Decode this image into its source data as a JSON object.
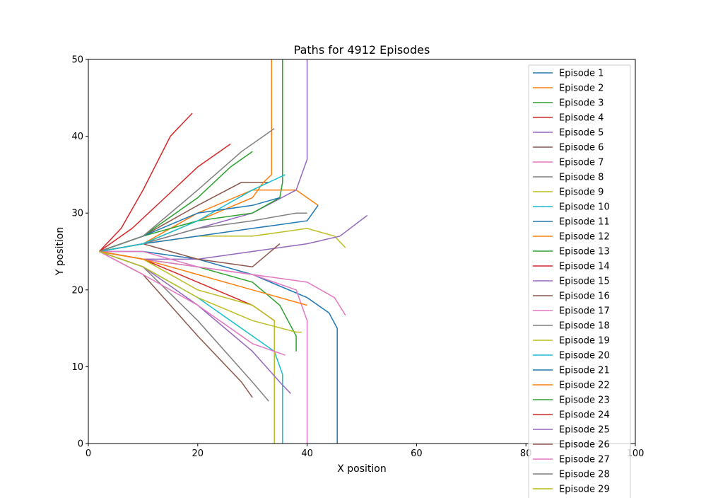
{
  "chart_data": {
    "type": "line",
    "title": "Paths for 4912 Episodes",
    "xlabel": "X position",
    "ylabel": "Y position",
    "xlim": [
      0,
      100
    ],
    "ylim": [
      0,
      50
    ],
    "xticks": [
      "0",
      "20",
      "40",
      "60",
      "80",
      "100"
    ],
    "yticks": [
      "0",
      "10",
      "20",
      "30",
      "40",
      "50"
    ],
    "grid": false,
    "legend_position": "right, extending below axes",
    "colors": [
      "#1f77b4",
      "#ff7f0e",
      "#2ca02c",
      "#d62728",
      "#9467bd",
      "#8c564b",
      "#e377c2",
      "#7f7f7f",
      "#bcbd22",
      "#17becf"
    ],
    "start_point": [
      2,
      25
    ],
    "legend": [
      "Episode 1",
      "Episode 2",
      "Episode 3",
      "Episode 4",
      "Episode 5",
      "Episode 6",
      "Episode 7",
      "Episode 8",
      "Episode 9",
      "Episode 10",
      "Episode 11",
      "Episode 12",
      "Episode 13",
      "Episode 14",
      "Episode 15",
      "Episode 16",
      "Episode 17",
      "Episode 18",
      "Episode 19",
      "Episode 20",
      "Episode 21",
      "Episode 22",
      "Episode 23",
      "Episode 24",
      "Episode 25",
      "Episode 26",
      "Episode 27",
      "Episode 28",
      "Episode 29"
    ],
    "series": [
      {
        "name": "Episode 1",
        "x": [
          2,
          10,
          20,
          30,
          40,
          44,
          45.5,
          45.5
        ],
        "y": [
          25,
          25,
          24,
          22,
          19,
          17,
          15,
          0
        ]
      },
      {
        "name": "Episode 2",
        "x": [
          2,
          10,
          20,
          30,
          38,
          42
        ],
        "y": [
          25,
          26,
          30,
          33,
          33,
          31
        ]
      },
      {
        "name": "Episode 3",
        "x": [
          2,
          10,
          20,
          30,
          35,
          38,
          38
        ],
        "y": [
          25,
          24,
          23,
          21,
          18,
          14,
          12
        ]
      },
      {
        "name": "Episode 4",
        "x": [
          2,
          6,
          10,
          15,
          19
        ],
        "y": [
          25,
          28,
          33,
          40,
          43
        ]
      },
      {
        "name": "Episode 5",
        "x": [
          2,
          10,
          20,
          30,
          38,
          40,
          40
        ],
        "y": [
          25,
          26,
          28,
          30,
          33,
          37,
          50
        ]
      },
      {
        "name": "Episode 6",
        "x": [
          2,
          10,
          20,
          28,
          32,
          33
        ],
        "y": [
          25,
          27,
          31,
          34,
          34,
          34
        ]
      },
      {
        "name": "Episode 7",
        "x": [
          2,
          10,
          20,
          30,
          38,
          40,
          40
        ],
        "y": [
          25,
          24,
          23,
          22,
          20,
          16,
          0
        ]
      },
      {
        "name": "Episode 8",
        "x": [
          2,
          10,
          20,
          30,
          33
        ],
        "y": [
          25,
          23,
          16,
          8,
          5.5
        ]
      },
      {
        "name": "Episode 9",
        "x": [
          2,
          10,
          20,
          30,
          40,
          45,
          47
        ],
        "y": [
          25,
          26,
          27,
          27,
          28,
          27,
          25.5
        ]
      },
      {
        "name": "Episode 10",
        "x": [
          2,
          10,
          20,
          30,
          34,
          35.5,
          35.5
        ],
        "y": [
          25,
          23,
          19,
          14,
          12,
          9,
          0
        ]
      },
      {
        "name": "Episode 11",
        "x": [
          2,
          10,
          20,
          30,
          40,
          42
        ],
        "y": [
          25,
          26,
          27,
          28,
          29,
          31
        ]
      },
      {
        "name": "Episode 12",
        "x": [
          2,
          10,
          20,
          30,
          32,
          33.5,
          33.5
        ],
        "y": [
          25,
          26,
          29,
          32,
          34,
          35,
          50
        ]
      },
      {
        "name": "Episode 13",
        "x": [
          2,
          10,
          20,
          30,
          35,
          35.5,
          35.5
        ],
        "y": [
          25,
          27,
          29,
          30,
          32,
          34,
          50
        ]
      },
      {
        "name": "Episode 14",
        "x": [
          2,
          10,
          20,
          30,
          34
        ],
        "y": [
          25,
          24,
          21,
          18,
          16
        ]
      },
      {
        "name": "Episode 15",
        "x": [
          2,
          10,
          20,
          30,
          40,
          46,
          51
        ],
        "y": [
          25,
          24,
          24,
          25,
          26,
          27,
          29.7
        ]
      },
      {
        "name": "Episode 16",
        "x": [
          2,
          10,
          20,
          30,
          35
        ],
        "y": [
          25,
          26,
          24,
          23,
          26
        ]
      },
      {
        "name": "Episode 17",
        "x": [
          2,
          10,
          20,
          30,
          40,
          45,
          47
        ],
        "y": [
          25,
          25,
          23,
          22,
          21,
          19,
          16.7
        ]
      },
      {
        "name": "Episode 18",
        "x": [
          2,
          10,
          20,
          30,
          38,
          40
        ],
        "y": [
          25,
          26,
          28,
          29,
          30,
          30
        ]
      },
      {
        "name": "Episode 19",
        "x": [
          2,
          10,
          20,
          30,
          34,
          34,
          34
        ],
        "y": [
          25,
          24,
          20,
          18,
          16,
          10,
          0
        ]
      },
      {
        "name": "Episode 20",
        "x": [
          2,
          10,
          20,
          30,
          36
        ],
        "y": [
          25,
          26,
          29,
          33,
          35
        ]
      },
      {
        "name": "Episode 21",
        "x": [
          2,
          10,
          20,
          30,
          35
        ],
        "y": [
          25,
          27,
          30,
          31,
          32
        ]
      },
      {
        "name": "Episode 22",
        "x": [
          2,
          10,
          20,
          30,
          40
        ],
        "y": [
          25,
          24,
          22,
          20,
          18
        ]
      },
      {
        "name": "Episode 23",
        "x": [
          2,
          10,
          20,
          26,
          30
        ],
        "y": [
          25,
          27,
          32,
          36,
          38
        ]
      },
      {
        "name": "Episode 24",
        "x": [
          2,
          8,
          14,
          20,
          26
        ],
        "y": [
          25,
          28,
          32,
          36,
          39
        ]
      },
      {
        "name": "Episode 25",
        "x": [
          2,
          10,
          20,
          30,
          35,
          37
        ],
        "y": [
          25,
          23,
          18,
          12,
          8,
          6.5
        ]
      },
      {
        "name": "Episode 26",
        "x": [
          2,
          10,
          20,
          28,
          30
        ],
        "y": [
          25,
          22,
          14,
          8,
          6
        ]
      },
      {
        "name": "Episode 27",
        "x": [
          2,
          10,
          20,
          30,
          36
        ],
        "y": [
          25,
          22,
          18,
          13,
          11.5
        ]
      },
      {
        "name": "Episode 28",
        "x": [
          2,
          10,
          20,
          28,
          34
        ],
        "y": [
          25,
          27,
          33,
          38,
          41
        ]
      },
      {
        "name": "Episode 29",
        "x": [
          2,
          10,
          20,
          30,
          38,
          39
        ],
        "y": [
          25,
          23,
          19,
          16,
          14.5,
          14.5
        ]
      }
    ]
  }
}
